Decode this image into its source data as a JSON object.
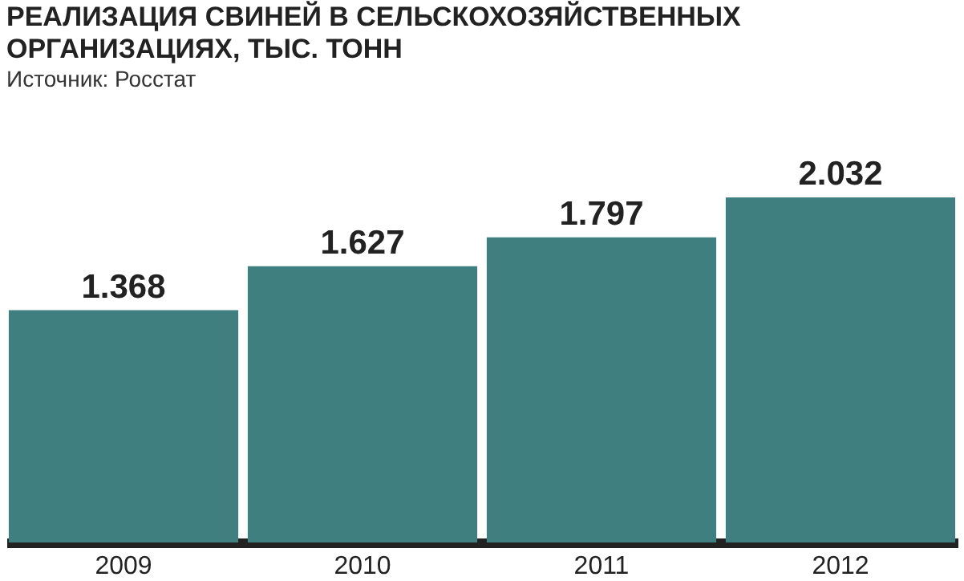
{
  "chart_data": {
    "type": "bar",
    "title": "РЕАЛИЗАЦИЯ СВИНЕЙ В СЕЛЬСКОХОЗЯЙСТВЕННЫХ\nОРГАНИЗАЦИЯХ, ТЫС. ТОНН",
    "subtitle": "Источник: Росстат",
    "categories": [
      "2009",
      "2010",
      "2011",
      "2012"
    ],
    "values": [
      1368,
      1627,
      1797,
      2032
    ],
    "color": "#3f7f80",
    "value_labels": [
      "1.368",
      "1.627",
      "1.797",
      "2.032"
    ],
    "grid": false
  }
}
